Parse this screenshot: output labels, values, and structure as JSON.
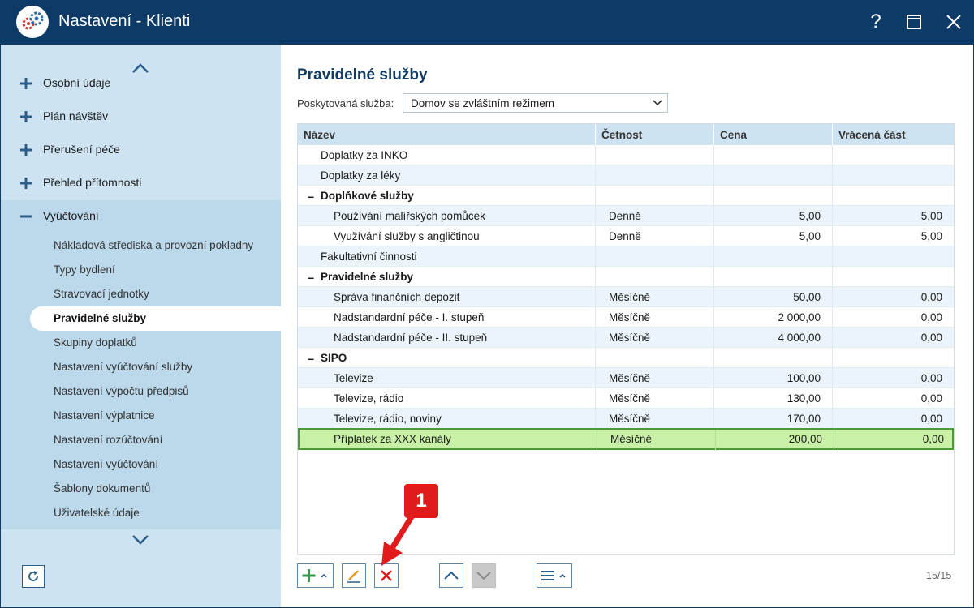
{
  "window": {
    "title": "Nastavení - Klienti",
    "help_label": "?"
  },
  "sidebar": {
    "items": [
      {
        "label": "Osobní údaje",
        "expanded": false
      },
      {
        "label": "Plán návštěv",
        "expanded": false
      },
      {
        "label": "Přerušení péče",
        "expanded": false
      },
      {
        "label": "Přehled přítomnosti",
        "expanded": false
      },
      {
        "label": "Vyúčtování",
        "expanded": true
      }
    ],
    "subitems": [
      {
        "label": "Nákladová střediska a provozní pokladny"
      },
      {
        "label": "Typy bydlení"
      },
      {
        "label": "Stravovací jednotky"
      },
      {
        "label": "Pravidelné služby",
        "active": true
      },
      {
        "label": "Skupiny doplatků"
      },
      {
        "label": "Nastavení vyúčtování služby"
      },
      {
        "label": "Nastavení výpočtu předpisů"
      },
      {
        "label": "Nastavení výplatnice"
      },
      {
        "label": "Nastavení rozúčtování"
      },
      {
        "label": "Nastavení vyúčtování"
      },
      {
        "label": "Šablony dokumentů"
      },
      {
        "label": "Uživatelské údaje"
      }
    ]
  },
  "main": {
    "title": "Pravidelné služby",
    "service_label": "Poskytovaná služba:",
    "service_value": "Domov se zvláštním režimem",
    "columns": [
      "Název",
      "Četnost",
      "Cena",
      "Vrácená část"
    ],
    "rows": [
      {
        "name": "Doplatky za INKO",
        "freq": "",
        "price": "",
        "returned": ""
      },
      {
        "name": "Doplatky za léky",
        "freq": "",
        "price": "",
        "returned": ""
      },
      {
        "name": "Doplňkové služby",
        "freq": "",
        "price": "",
        "returned": ""
      },
      {
        "name": "Používání malířských pomůcek",
        "freq": "Denně",
        "price": "5,00",
        "returned": "5,00"
      },
      {
        "name": "Využívání služby s angličtinou",
        "freq": "Denně",
        "price": "5,00",
        "returned": "5,00"
      },
      {
        "name": "Fakultativní činnosti",
        "freq": "",
        "price": "",
        "returned": ""
      },
      {
        "name": "Pravidelné služby",
        "freq": "",
        "price": "",
        "returned": ""
      },
      {
        "name": "Správa finančních depozit",
        "freq": "Měsíčně",
        "price": "50,00",
        "returned": "0,00"
      },
      {
        "name": "Nadstandardní péče - I. stupeň",
        "freq": "Měsíčně",
        "price": "2 000,00",
        "returned": "0,00"
      },
      {
        "name": "Nadstandardní péče - II. stupeň",
        "freq": "Měsíčně",
        "price": "4 000,00",
        "returned": "0,00"
      },
      {
        "name": "SIPO",
        "freq": "",
        "price": "",
        "returned": ""
      },
      {
        "name": "Televize",
        "freq": "Měsíčně",
        "price": "100,00",
        "returned": "0,00"
      },
      {
        "name": "Televize, rádio",
        "freq": "Měsíčně",
        "price": "130,00",
        "returned": "0,00"
      },
      {
        "name": "Televize, rádio, noviny",
        "freq": "Měsíčně",
        "price": "170,00",
        "returned": "0,00"
      },
      {
        "name": "Příplatek za XXX kanály",
        "freq": "Měsíčně",
        "price": "200,00",
        "returned": "0,00"
      }
    ],
    "group_marker": "−",
    "record_counter": "15/15"
  },
  "annotation": {
    "callout_number": "1"
  },
  "colors": {
    "titlebar": "#0d3a66",
    "sidebar": "#cde3f1",
    "selected_row": "#c8f0a6",
    "delete_red": "#e11b1b",
    "add_green": "#2e9b4c"
  },
  "icons": [
    "app-logo-icon",
    "help-icon",
    "maximize-icon",
    "close-icon",
    "chevron-up-icon",
    "chevron-down-icon",
    "plus-icon",
    "minus-icon",
    "refresh-icon",
    "add-icon",
    "edit-icon",
    "delete-icon",
    "move-up-icon",
    "move-down-icon",
    "menu-icon"
  ]
}
